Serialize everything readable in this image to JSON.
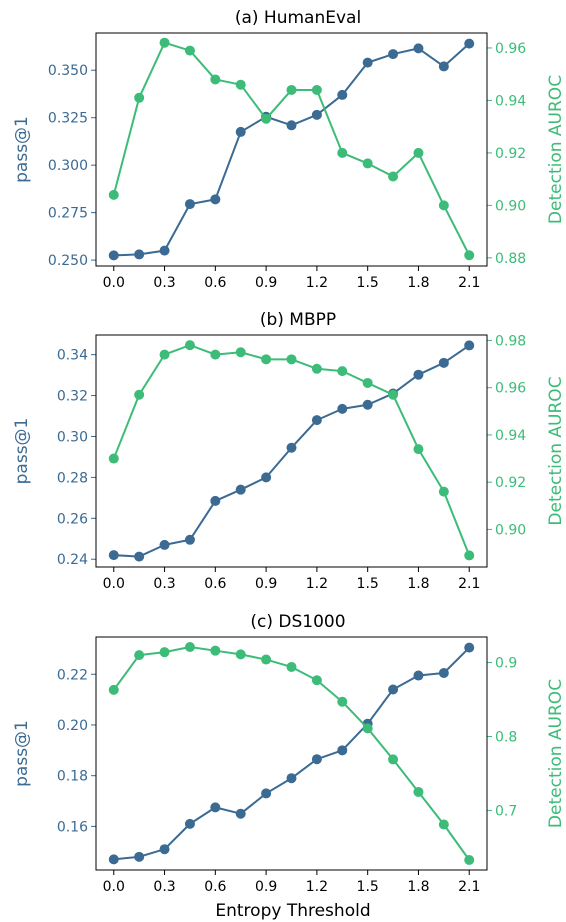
{
  "colors": {
    "pass": "#3b6a93",
    "auroc": "#3cbc78",
    "axis": "#000000"
  },
  "chart_data": [
    {
      "type": "line",
      "title": "(a) HumanEval",
      "x": [
        0.0,
        0.15,
        0.3,
        0.45,
        0.6,
        0.75,
        0.9,
        1.05,
        1.2,
        1.35,
        1.5,
        1.65,
        1.8,
        1.95,
        2.1
      ],
      "xticks": [
        "0.0",
        "0.3",
        "0.6",
        "0.9",
        "1.2",
        "1.5",
        "1.8",
        "2.1"
      ],
      "xlim": [
        -0.105,
        2.205
      ],
      "xlabel": "",
      "series": [
        {
          "name": "pass@1",
          "axis": "left",
          "color": "#3b6a93",
          "values": [
            0.2525,
            0.253,
            0.255,
            0.2795,
            0.282,
            0.3175,
            0.3255,
            0.321,
            0.3265,
            0.337,
            0.354,
            0.3585,
            0.3615,
            0.352,
            0.364
          ]
        },
        {
          "name": "Detection AUROC",
          "axis": "right",
          "color": "#3cbc78",
          "values": [
            0.904,
            0.941,
            0.962,
            0.959,
            0.948,
            0.946,
            0.933,
            0.944,
            0.944,
            0.92,
            0.916,
            0.911,
            0.92,
            0.9,
            0.881
          ]
        }
      ],
      "ylabel_left": "pass@1",
      "ylim_left": [
        0.2469,
        0.3696
      ],
      "yticks_left": [
        "0.250",
        "0.275",
        "0.300",
        "0.325",
        "0.350"
      ],
      "ylabel_right": "Detection AUROC",
      "ylim_right": [
        0.8769,
        0.9657
      ],
      "yticks_right": [
        "0.88",
        "0.90",
        "0.92",
        "0.94",
        "0.96"
      ]
    },
    {
      "type": "line",
      "title": "(b) MBPP",
      "x": [
        0.0,
        0.15,
        0.3,
        0.45,
        0.6,
        0.75,
        0.9,
        1.05,
        1.2,
        1.35,
        1.5,
        1.65,
        1.8,
        1.95,
        2.1
      ],
      "xticks": [
        "0.0",
        "0.3",
        "0.6",
        "0.9",
        "1.2",
        "1.5",
        "1.8",
        "2.1"
      ],
      "xlim": [
        -0.105,
        2.205
      ],
      "xlabel": "",
      "series": [
        {
          "name": "pass@1",
          "axis": "left",
          "color": "#3b6a93",
          "values": [
            0.242,
            0.2413,
            0.247,
            0.2495,
            0.2685,
            0.274,
            0.28,
            0.2945,
            0.308,
            0.3135,
            0.3155,
            0.321,
            0.3302,
            0.336,
            0.3445
          ]
        },
        {
          "name": "Detection AUROC",
          "axis": "right",
          "color": "#3cbc78",
          "values": [
            0.93,
            0.957,
            0.974,
            0.978,
            0.974,
            0.975,
            0.972,
            0.972,
            0.968,
            0.967,
            0.962,
            0.957,
            0.934,
            0.916,
            0.889
          ]
        }
      ],
      "ylabel_left": "pass@1",
      "ylim_left": [
        0.2362,
        0.3496
      ],
      "yticks_left": [
        "0.24",
        "0.26",
        "0.28",
        "0.30",
        "0.32",
        "0.34"
      ],
      "ylabel_right": "Detection AUROC",
      "ylim_right": [
        0.8841,
        0.9823
      ],
      "yticks_right": [
        "0.90",
        "0.92",
        "0.94",
        "0.96",
        "0.98"
      ]
    },
    {
      "type": "line",
      "title": "(c) DS1000",
      "x": [
        0.0,
        0.15,
        0.3,
        0.45,
        0.6,
        0.75,
        0.9,
        1.05,
        1.2,
        1.35,
        1.5,
        1.65,
        1.8,
        1.95,
        2.1
      ],
      "xticks": [
        "0.0",
        "0.3",
        "0.6",
        "0.9",
        "1.2",
        "1.5",
        "1.8",
        "2.1"
      ],
      "xlim": [
        -0.105,
        2.205
      ],
      "xlabel": "Entropy Threshold",
      "series": [
        {
          "name": "pass@1",
          "axis": "left",
          "color": "#3b6a93",
          "values": [
            0.147,
            0.148,
            0.151,
            0.161,
            0.1675,
            0.165,
            0.173,
            0.179,
            0.1865,
            0.19,
            0.2005,
            0.214,
            0.2195,
            0.2205,
            0.2305
          ]
        },
        {
          "name": "Detection AUROC",
          "axis": "right",
          "color": "#3cbc78",
          "values": [
            0.863,
            0.91,
            0.914,
            0.921,
            0.916,
            0.911,
            0.904,
            0.894,
            0.876,
            0.847,
            0.811,
            0.769,
            0.725,
            0.681,
            0.633
          ]
        }
      ],
      "ylabel_left": "pass@1",
      "ylim_left": [
        0.1428,
        0.2347
      ],
      "yticks_left": [
        "0.16",
        "0.18",
        "0.20",
        "0.22"
      ],
      "ylabel_right": "Detection AUROC",
      "ylim_right": [
        0.6195,
        0.9345
      ],
      "yticks_right": [
        "0.7",
        "0.8",
        "0.9"
      ]
    }
  ]
}
